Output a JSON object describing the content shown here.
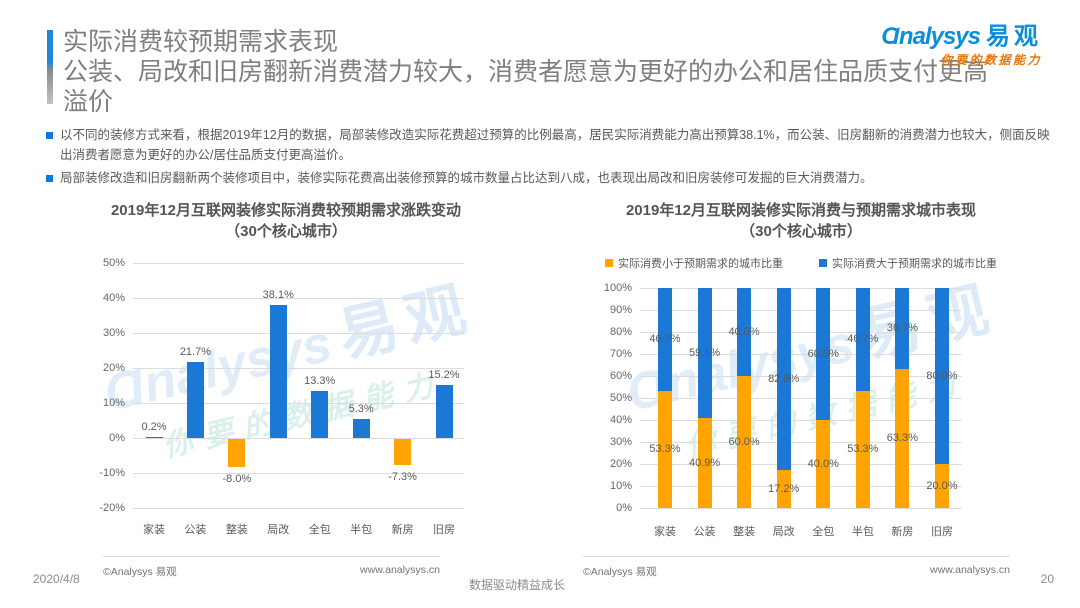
{
  "header": {
    "title_line1": "实际消费较预期需求表现",
    "title_line23": "公装、局改和旧房翻新消费潜力较大，消费者愿意为更好的办公和居住品质支付更高溢价",
    "logo": {
      "brand_latin": "Ɑnalysys",
      "brand_cjk": "易观",
      "tagline": "你要的数据能力",
      "brand_color": "#0a8fd8",
      "tagline_color": "#e8760b"
    }
  },
  "bullets": [
    "以不同的装修方式来看，根据2019年12月的数据，局部装修改造实际花费超过预算的比例最高，居民实际消费能力高出预算38.1%，而公装、旧房翻新的消费潜力也较大，侧面反映出消费者愿意为更好的办公/居住品质支付更高溢价。",
    "局部装修改造和旧房翻新两个装修项目中，装修实际花费高出装修预算的城市数量占比达到八成，也表现出局改和旧房装修可发掘的巨大消费潜力。"
  ],
  "chart_data": [
    {
      "type": "bar",
      "title": "2019年12月互联网装修实际消费较预期需求涨跌变动",
      "subtitle": "（30个核心城市）",
      "categories": [
        "家装",
        "公装",
        "整装",
        "局改",
        "全包",
        "半包",
        "新房",
        "旧房"
      ],
      "values": [
        0.2,
        21.7,
        -8.0,
        38.1,
        13.3,
        5.3,
        -7.3,
        15.2
      ],
      "labels": [
        "0.2%",
        "21.7%",
        "-8.0%",
        "38.1%",
        "13.3%",
        "5.3%",
        "-7.3%",
        "15.2%"
      ],
      "xlabel": "",
      "ylabel": "",
      "ylim": [
        -20,
        50
      ],
      "yticks": [
        "50%",
        "40%",
        "30%",
        "20%",
        "10%",
        "0%",
        "-10%",
        "-20%"
      ],
      "grid": true,
      "positive_color": "#1b78d4",
      "negative_color": "#ffa400"
    },
    {
      "type": "stacked-bar",
      "title": "2019年12月互联网装修实际消费与预期需求城市表现",
      "subtitle": "（30个核心城市）",
      "legend": [
        {
          "label": "实际消费小于预期需求的城市比重",
          "color": "#ffa400"
        },
        {
          "label": "实际消费大于预期需求的城市比重",
          "color": "#1b78d4"
        }
      ],
      "legend_position": "top",
      "categories": [
        "家装",
        "公装",
        "整装",
        "局改",
        "全包",
        "半包",
        "新房",
        "旧房"
      ],
      "series": [
        {
          "name": "实际消费小于预期需求的城市比重",
          "color": "#ffa400",
          "values": [
            53.3,
            40.9,
            60.0,
            17.2,
            40.0,
            53.3,
            63.3,
            20.0
          ],
          "labels": [
            "53.3%",
            "40.9%",
            "60.0%",
            "17.2%",
            "40.0%",
            "53.3%",
            "63.3%",
            "20.0%"
          ]
        },
        {
          "name": "实际消费大于预期需求的城市比重",
          "color": "#1b78d4",
          "values": [
            46.7,
            59.1,
            40.0,
            82.8,
            60.0,
            46.7,
            36.7,
            80.0
          ],
          "labels": [
            "46.7%",
            "59.1%",
            "40.0%",
            "82.8%",
            "60.0%",
            "46.7%",
            "36.7%",
            "80.0%"
          ]
        }
      ],
      "xlabel": "",
      "ylabel": "",
      "ylim": [
        0,
        100
      ],
      "yticks": [
        "100%",
        "90%",
        "80%",
        "70%",
        "60%",
        "50%",
        "40%",
        "30%",
        "20%",
        "10%",
        "0%"
      ],
      "grid": true
    }
  ],
  "watermark": {
    "latin": "Ɑnalysys",
    "cjk": "易观",
    "tagline": "你要的数据能力"
  },
  "footer": {
    "date": "2020/4/8",
    "copyright": "©Analysys 易观",
    "website": "www.analysys.cn",
    "slogan": "数据驱动精益成长",
    "page": "20"
  }
}
